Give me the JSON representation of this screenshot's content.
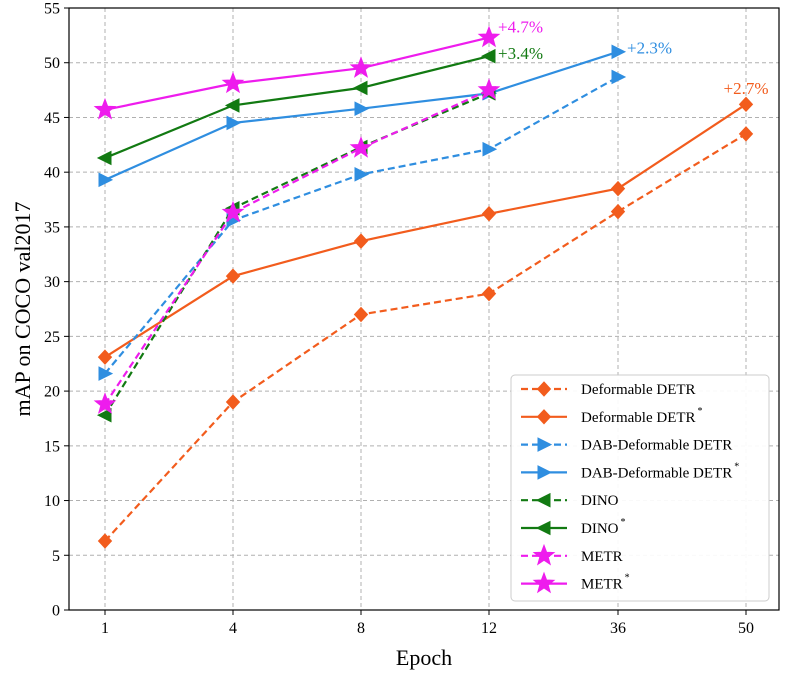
{
  "chart_data": {
    "type": "line",
    "title": "",
    "xlabel": "Epoch",
    "ylabel": "mAP on COCO val2017",
    "categories": [
      "1",
      "4",
      "8",
      "12",
      "36",
      "50"
    ],
    "ylim": [
      0,
      55
    ],
    "yticks": [
      0,
      5,
      10,
      15,
      20,
      25,
      30,
      35,
      40,
      45,
      50,
      55
    ],
    "grid": true,
    "legend_position": "bottom-right",
    "series": [
      {
        "name": "Deformable DETR",
        "sup": "",
        "color": "#f25c1d",
        "dashed": true,
        "marker": "diamond",
        "values": [
          6.3,
          19.0,
          27.0,
          28.9,
          36.4,
          43.5
        ]
      },
      {
        "name": "Deformable DETR",
        "sup": "*",
        "color": "#f25c1d",
        "dashed": false,
        "marker": "diamond",
        "values": [
          23.1,
          30.5,
          33.7,
          36.2,
          38.5,
          46.2
        ]
      },
      {
        "name": "DAB-Deformable DETR",
        "sup": "",
        "color": "#2f8ee0",
        "dashed": true,
        "marker": "triangle-right",
        "values": [
          21.6,
          35.6,
          39.8,
          42.1,
          48.7,
          null
        ]
      },
      {
        "name": "DAB-Deformable DETR",
        "sup": "*",
        "color": "#2f8ee0",
        "dashed": false,
        "marker": "triangle-right",
        "values": [
          39.3,
          44.5,
          45.8,
          47.2,
          51.0,
          null
        ]
      },
      {
        "name": "DINO",
        "sup": "",
        "color": "#127a12",
        "dashed": true,
        "marker": "triangle-left",
        "values": [
          17.8,
          36.7,
          42.3,
          47.2,
          null,
          null
        ]
      },
      {
        "name": "DINO",
        "sup": "*",
        "color": "#127a12",
        "dashed": false,
        "marker": "triangle-left",
        "values": [
          41.3,
          46.1,
          47.7,
          50.6,
          null,
          null
        ]
      },
      {
        "name": "METR",
        "sup": "",
        "color": "#ee1ced",
        "dashed": true,
        "marker": "star",
        "values": [
          18.8,
          36.3,
          42.2,
          47.5,
          null,
          null
        ]
      },
      {
        "name": "METR",
        "sup": "*",
        "color": "#ee1ced",
        "dashed": false,
        "marker": "star",
        "values": [
          45.7,
          48.1,
          49.5,
          52.3,
          null,
          null
        ]
      }
    ],
    "annotations": [
      {
        "text": "+4.7%",
        "color": "#ee1ced",
        "x": "12",
        "y": 53.3
      },
      {
        "text": "+3.4%",
        "color": "#127a12",
        "x": "12",
        "y": 50.9
      },
      {
        "text": "+2.3%",
        "color": "#2f8ee0",
        "x": "36",
        "y": 51.4
      },
      {
        "text": "+2.7%",
        "color": "#f25c1d",
        "x": "50",
        "y": 47.7
      }
    ]
  }
}
